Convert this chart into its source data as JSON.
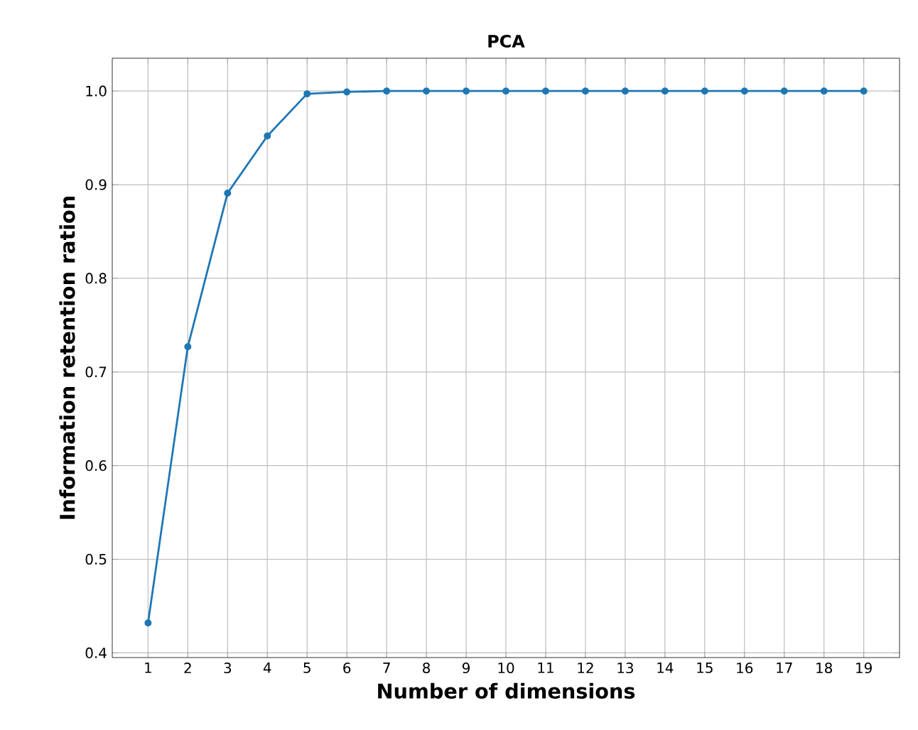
{
  "chart_data": {
    "type": "line",
    "title": "PCA",
    "xlabel": "Number of dimensions",
    "ylabel": "Information retention ration",
    "x": [
      1,
      2,
      3,
      4,
      5,
      6,
      7,
      8,
      9,
      10,
      11,
      12,
      13,
      14,
      15,
      16,
      17,
      18,
      19
    ],
    "series": [
      {
        "color": "#1f77b4",
        "values": [
          0.432,
          0.727,
          0.891,
          0.952,
          0.997,
          0.999,
          1.0,
          1.0,
          1.0,
          1.0,
          1.0,
          1.0,
          1.0,
          1.0,
          1.0,
          1.0,
          1.0,
          1.0,
          1.0
        ]
      }
    ],
    "xlim": [
      0.1,
      19.9
    ],
    "ylim": [
      0.395,
      1.035
    ],
    "xticks": [
      1,
      2,
      3,
      4,
      5,
      6,
      7,
      8,
      9,
      10,
      11,
      12,
      13,
      14,
      15,
      16,
      17,
      18,
      19
    ],
    "yticks": [
      {
        "value": 0.4,
        "label": "0.4"
      },
      {
        "value": 0.5,
        "label": "0.5"
      },
      {
        "value": 0.6,
        "label": "0.6"
      },
      {
        "value": 0.7,
        "label": "0.7"
      },
      {
        "value": 0.8,
        "label": "0.8"
      },
      {
        "value": 0.9,
        "label": "0.9"
      },
      {
        "value": 1.0,
        "label": "1.0"
      }
    ],
    "grid": true,
    "marker": "circle",
    "line_style": "solid"
  }
}
